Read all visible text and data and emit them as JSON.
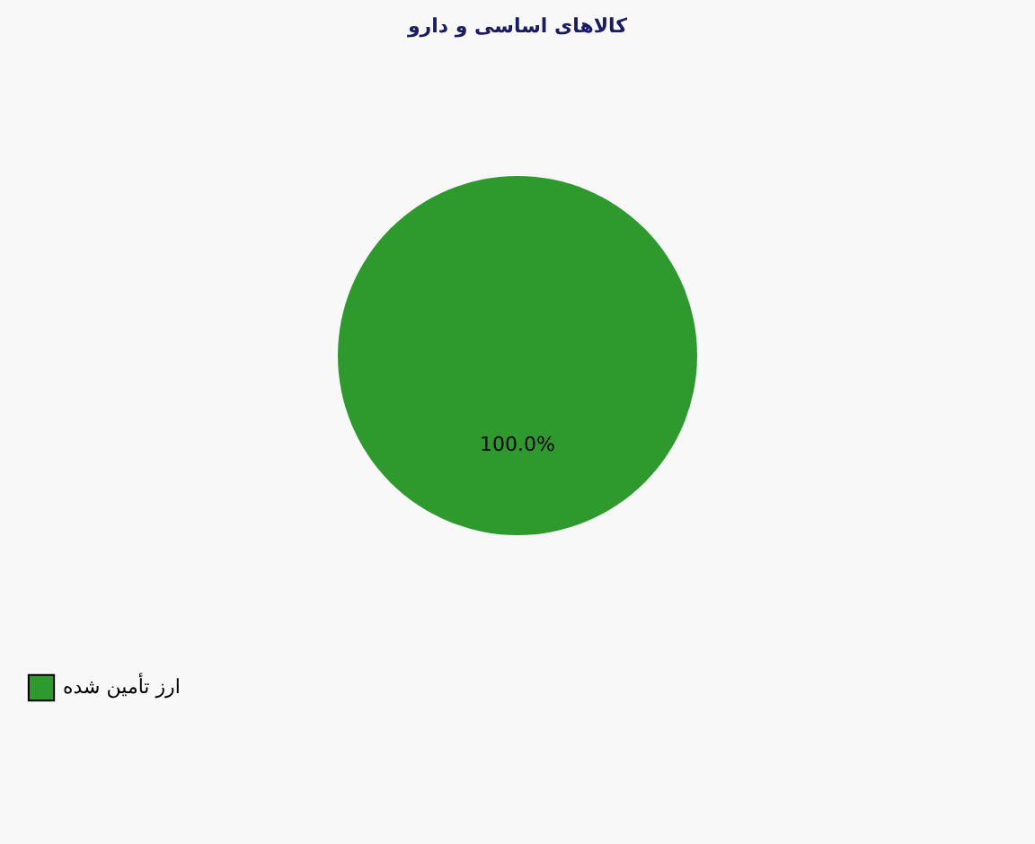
{
  "chart_data": {
    "type": "pie",
    "title": "کالاهای اساسی و دارو",
    "categories": [
      "ارز تأمین شده"
    ],
    "values": [
      100
    ],
    "colors": [
      "#2e9a2e"
    ],
    "value_labels": [
      "100.0%"
    ],
    "legend": "bottom left"
  }
}
